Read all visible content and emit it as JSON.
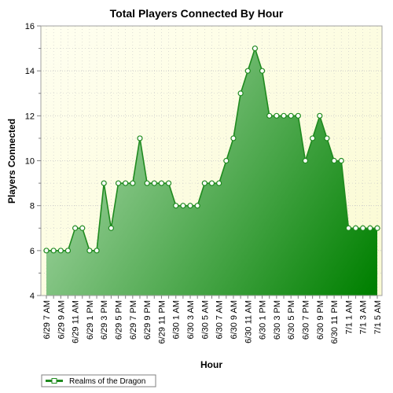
{
  "chart_data": {
    "type": "area",
    "title": "Total Players Connected By Hour",
    "xlabel": "Hour",
    "ylabel": "Players Connected",
    "ylim": [
      4,
      16
    ],
    "yticks": [
      4,
      6,
      8,
      10,
      12,
      14,
      16
    ],
    "grid": true,
    "legend_position": "bottom-left",
    "x": [
      "6/29 7 AM",
      "6/29 8 AM",
      "6/29 9 AM",
      "6/29 10 AM",
      "6/29 11 AM",
      "6/29 12 PM",
      "6/29 1 PM",
      "6/29 2 PM",
      "6/29 3 PM",
      "6/29 4 PM",
      "6/29 5 PM",
      "6/29 6 PM",
      "6/29 7 PM",
      "6/29 8 PM",
      "6/29 9 PM",
      "6/29 10 PM",
      "6/29 11 PM",
      "6/30 12 AM",
      "6/30 1 AM",
      "6/30 2 AM",
      "6/30 3 AM",
      "6/30 4 AM",
      "6/30 5 AM",
      "6/30 6 AM",
      "6/30 7 AM",
      "6/30 8 AM",
      "6/30 9 AM",
      "6/30 10 AM",
      "6/30 11 AM",
      "6/30 12 PM",
      "6/30 1 PM",
      "6/30 2 PM",
      "6/30 3 PM",
      "6/30 4 PM",
      "6/30 5 PM",
      "6/30 6 PM",
      "6/30 7 PM",
      "6/30 8 PM",
      "6/30 9 PM",
      "6/30 10 PM",
      "6/30 11 PM",
      "7/1 12 AM",
      "7/1 1 AM",
      "7/1 2 AM",
      "7/1 3 AM",
      "7/1 4 AM",
      "7/1 5 AM"
    ],
    "tick_labels": [
      "6/29 7 AM",
      "6/29 9 AM",
      "6/29 11 AM",
      "6/29 1 PM",
      "6/29 3 PM",
      "6/29 5 PM",
      "6/29 7 PM",
      "6/29 9 PM",
      "6/29 11 PM",
      "6/30 1 AM",
      "6/30 3 AM",
      "6/30 5 AM",
      "6/30 7 AM",
      "6/30 9 AM",
      "6/30 11 AM",
      "6/30 1 PM",
      "6/30 3 PM",
      "6/30 5 PM",
      "6/30 7 PM",
      "6/30 9 PM",
      "6/30 11 PM",
      "7/1 1 AM",
      "7/1 3 AM",
      "7/1 5 AM"
    ],
    "series": [
      {
        "name": "Realms of the Dragon",
        "values": [
          6,
          6,
          6,
          6,
          7,
          7,
          6,
          6,
          9,
          7,
          9,
          9,
          9,
          11,
          9,
          9,
          9,
          9,
          8,
          8,
          8,
          8,
          9,
          9,
          9,
          10,
          11,
          13,
          14,
          15,
          14,
          12,
          12,
          12,
          12,
          12,
          10,
          11,
          12,
          11,
          10,
          10,
          7,
          7,
          7,
          7,
          7
        ]
      }
    ],
    "colors": {
      "line": "#1f8a1f",
      "marker_fill": "#ffffff",
      "area_light": "#b2dcb2",
      "area_dark": "#008000",
      "plot_bg_light": "#fffff0",
      "plot_bg_dark": "#fafad2",
      "grid": "#c8c8c8"
    }
  }
}
